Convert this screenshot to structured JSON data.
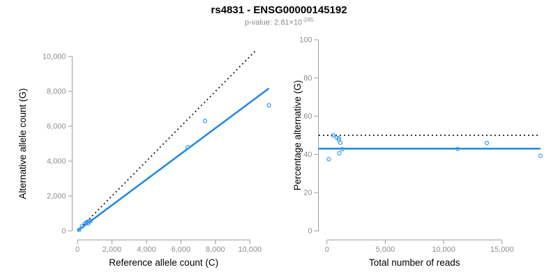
{
  "header": {
    "title": "rs4831 - ENSG00000145192",
    "pvalue_label": "p-value: 2.81×10",
    "pvalue_exponent": "-245"
  },
  "colors": {
    "accent_blue_line": "#1E87E5",
    "point_blue": "#3B97F0",
    "dotted_black": "#000000",
    "axis_gray": "#9B9B9B",
    "tick_text_gray": "#8D8D8D",
    "axis_title_black": "#000000"
  },
  "chart_data": [
    {
      "type": "scatter",
      "title": "",
      "xlabel": "Reference allele count (C)",
      "ylabel": "Alternative allele count (G)",
      "xlim": [
        0,
        11200
      ],
      "ylim": [
        0,
        10000
      ],
      "xticks": [
        0,
        2000,
        4000,
        6000,
        8000,
        10000
      ],
      "yticks": [
        0,
        2000,
        4000,
        6000,
        8000,
        10000
      ],
      "grid": false,
      "legend": null,
      "points": [
        [
          100,
          60
        ],
        [
          260,
          260
        ],
        [
          420,
          400
        ],
        [
          520,
          490
        ],
        [
          540,
          490
        ],
        [
          620,
          530
        ],
        [
          750,
          560
        ],
        [
          630,
          430
        ],
        [
          6400,
          4800
        ],
        [
          7400,
          6300
        ],
        [
          11100,
          7200
        ]
      ],
      "lines": [
        {
          "name": "identity-line",
          "style": "dotted",
          "color": "#000000",
          "points": [
            [
              0,
              0
            ],
            [
              10400,
              10400
            ]
          ]
        },
        {
          "name": "regression-line",
          "style": "solid",
          "color": "#1E87E5",
          "points": [
            [
              0,
              0
            ],
            [
              11100,
              8170
            ]
          ]
        }
      ]
    },
    {
      "type": "scatter",
      "title": "",
      "xlabel": "Total number of reads",
      "ylabel": "Percentage alternative (G)",
      "xlim": [
        0,
        17600
      ],
      "ylim": [
        0,
        100
      ],
      "xticks": [
        0,
        5000,
        10000,
        15000
      ],
      "yticks": [
        0,
        20,
        40,
        60,
        80,
        100
      ],
      "grid": false,
      "legend": null,
      "points": [
        [
          160,
          37.5
        ],
        [
          520,
          50.0
        ],
        [
          820,
          48.8
        ],
        [
          1010,
          48.5
        ],
        [
          1030,
          47.6
        ],
        [
          1150,
          46.1
        ],
        [
          1310,
          42.7
        ],
        [
          1060,
          40.6
        ],
        [
          11200,
          42.9
        ],
        [
          13700,
          46.0
        ],
        [
          18300,
          39.3
        ]
      ],
      "lines": [
        {
          "name": "expected-50pct-line",
          "style": "dotted",
          "color": "#000000",
          "hline": 50
        },
        {
          "name": "mean-fraction-line",
          "style": "solid",
          "color": "#1E87E5",
          "hline": 43
        }
      ]
    }
  ]
}
